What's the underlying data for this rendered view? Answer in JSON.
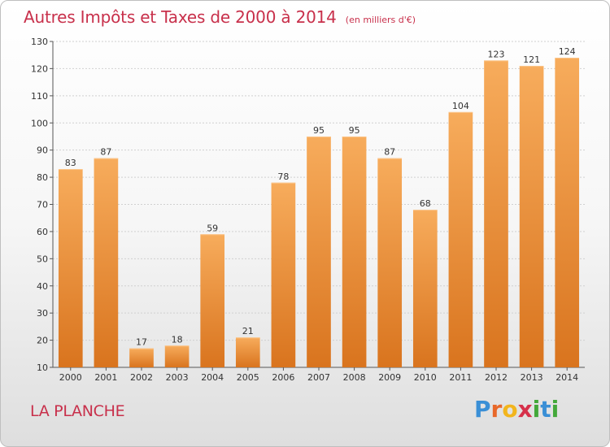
{
  "header": {
    "title": "Autres Impôts et Taxes de 2000 à 2014",
    "unit": "(en milliers d'€)"
  },
  "commune": "LA PLANCHE",
  "logo": {
    "letters": [
      "P",
      "r",
      "o",
      "x",
      "i",
      "t",
      "i"
    ],
    "colors": [
      "#3a8fd6",
      "#e8682a",
      "#f2b51d",
      "#d6304a",
      "#43a83a",
      "#3a8fd6",
      "#43a83a"
    ]
  },
  "chart_data": {
    "type": "bar",
    "categories": [
      "2000",
      "2001",
      "2002",
      "2003",
      "2004",
      "2005",
      "2006",
      "2007",
      "2008",
      "2009",
      "2010",
      "2011",
      "2012",
      "2013",
      "2014"
    ],
    "values": [
      83,
      87,
      17,
      18,
      59,
      21,
      78,
      95,
      95,
      87,
      68,
      104,
      123,
      121,
      124
    ],
    "title": "Autres Impôts et Taxes de 2000 à 2014",
    "ylim": [
      10,
      130
    ],
    "yticks": [
      10,
      20,
      30,
      40,
      50,
      60,
      70,
      80,
      90,
      100,
      110,
      120,
      130
    ],
    "grid": true,
    "bar_color": "#f0963a",
    "bar_color_light": "#f7ac5c",
    "bar_color_dark": "#d9741e"
  }
}
